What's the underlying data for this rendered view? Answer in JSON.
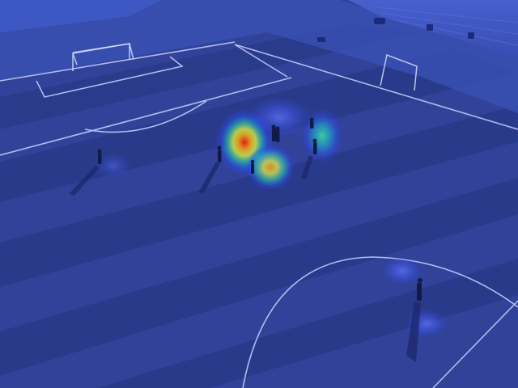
{
  "scene": {
    "subject": "aerial-football-pitch",
    "overlay": "attention-heatmap",
    "colors": {
      "base_tint": "#2f3f86",
      "pitch_stripe_a": "#374896",
      "pitch_stripe_b": "#2b3a7f",
      "stands": "#3e55b6",
      "line": "#e6e9ff",
      "heat_low": "#2a44ff",
      "heat_mid": "#14d6a0",
      "heat_high": "#ffea00",
      "heat_peak": "#ff2200"
    },
    "players": [
      {
        "name": "player-1"
      },
      {
        "name": "player-2"
      },
      {
        "name": "player-3"
      },
      {
        "name": "player-4"
      },
      {
        "name": "player-5"
      },
      {
        "name": "player-6"
      },
      {
        "name": "player-7"
      },
      {
        "name": "player-8"
      }
    ],
    "heat_spots": [
      {
        "name": "heat-spot-main",
        "intensity": 1.0
      },
      {
        "name": "heat-spot-lower",
        "intensity": 0.85
      },
      {
        "name": "heat-spot-right",
        "intensity": 0.6
      },
      {
        "name": "heat-spot-far-right",
        "intensity": 0.5
      },
      {
        "name": "heat-spot-bottom-right",
        "intensity": 0.4
      },
      {
        "name": "heat-spot-left",
        "intensity": 0.2
      }
    ]
  }
}
